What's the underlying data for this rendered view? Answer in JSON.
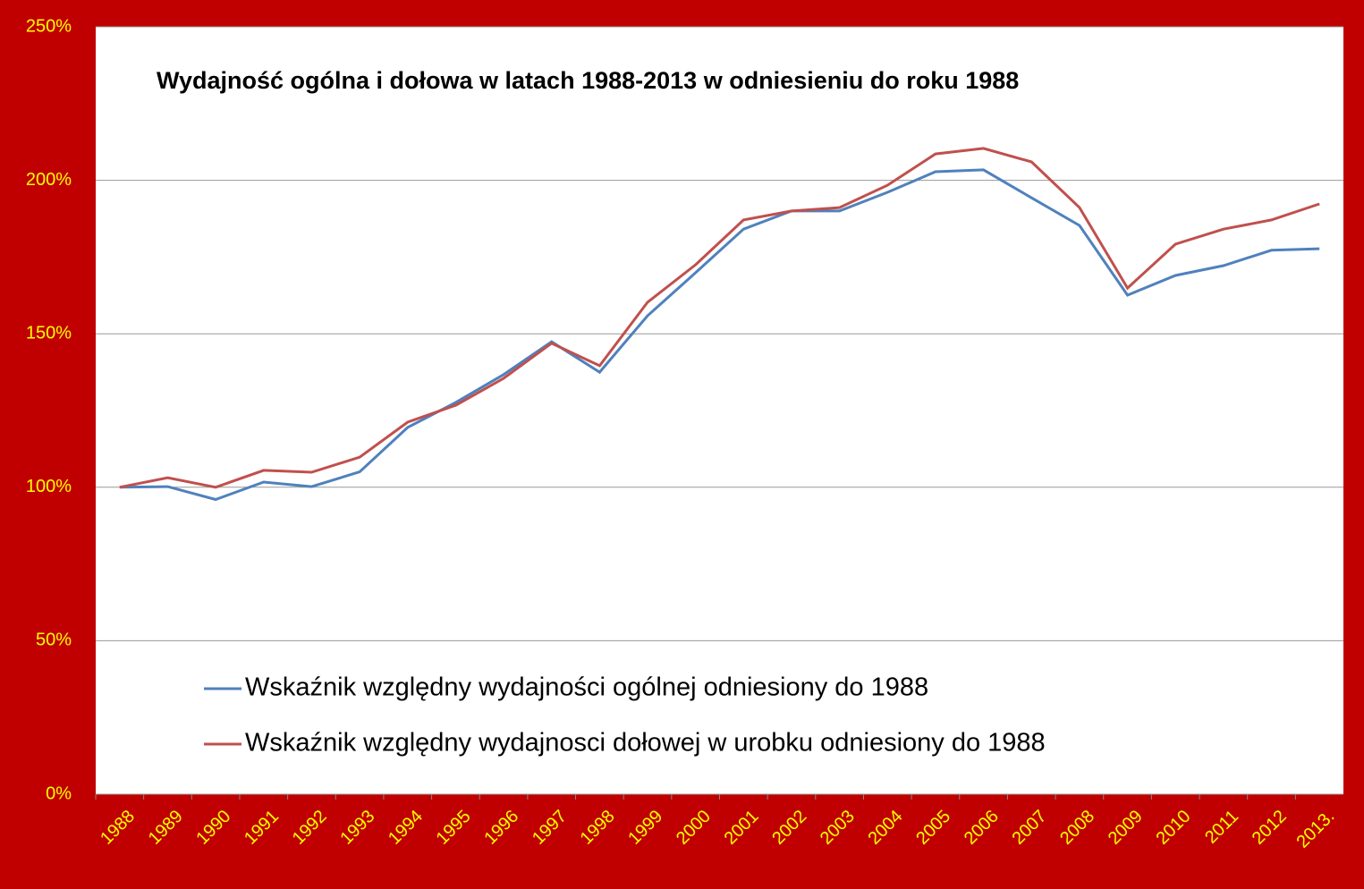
{
  "chart_data": {
    "type": "line",
    "title": "Wydajność ogólna i dołowa w latach 1988-2013 w odniesieniu do roku 1988",
    "categories": [
      "1988",
      "1989",
      "1990",
      "1991",
      "1992",
      "1993",
      "1994",
      "1995",
      "1996",
      "1997",
      "1998",
      "1999",
      "2000",
      "2001",
      "2002",
      "2003",
      "2004",
      "2005",
      "2006",
      "2007",
      "2008",
      "2009",
      "2010",
      "2011",
      "2012",
      "2013."
    ],
    "series": [
      {
        "name": "Wskaźnik względny wydajności ogólnej odniesiony do 1988",
        "color": "#4f81bd",
        "values": [
          100,
          100.2,
          96,
          101.7,
          100.2,
          105,
          119.5,
          127.6,
          136.7,
          147.4,
          137.5,
          155.9,
          169.9,
          184.1,
          190,
          190,
          196.1,
          202.8,
          203.4,
          194.3,
          185.3,
          162.6,
          169,
          172.2,
          177.2,
          177.7
        ]
      },
      {
        "name": "Wskaźnik względny wydajnosci dołowej w urobku odniesiony do 1988",
        "color": "#c0504d",
        "values": [
          100,
          103.1,
          100,
          105.5,
          104.9,
          109.8,
          121.2,
          126.7,
          135.5,
          146.9,
          139.6,
          160.3,
          172.5,
          187.1,
          190,
          191.1,
          198.4,
          208.6,
          210.4,
          206,
          191.1,
          164.9,
          179.2,
          184.1,
          187.1,
          192.3
        ]
      }
    ],
    "ylim": [
      0,
      250
    ],
    "yticks": [
      {
        "value": 0,
        "label": "0%"
      },
      {
        "value": 50,
        "label": "50%"
      },
      {
        "value": 100,
        "label": "100%"
      },
      {
        "value": 150,
        "label": "150%"
      },
      {
        "value": 200,
        "label": "200%"
      },
      {
        "value": 250,
        "label": "250%"
      }
    ],
    "grid": true
  }
}
